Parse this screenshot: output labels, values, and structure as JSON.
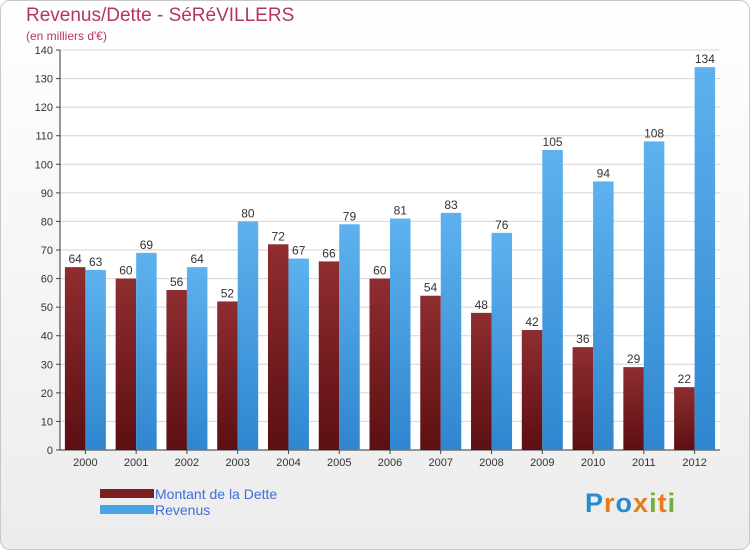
{
  "header": {
    "title": "Revenus/Dette - SéRéVILLERS",
    "subtitle": "(en milliers d'€)"
  },
  "chart_data": {
    "type": "bar",
    "categories": [
      "2000",
      "2001",
      "2002",
      "2003",
      "2004",
      "2005",
      "2006",
      "2007",
      "2008",
      "2009",
      "2010",
      "2011",
      "2012"
    ],
    "series": [
      {
        "name": "Montant de la Dette",
        "color": "#7a1f22",
        "values": [
          64,
          60,
          56,
          52,
          72,
          66,
          60,
          54,
          48,
          42,
          36,
          29,
          22
        ]
      },
      {
        "name": "Revenus",
        "color": "#4aa3e6",
        "values": [
          63,
          69,
          64,
          80,
          67,
          79,
          81,
          83,
          76,
          105,
          94,
          108,
          134
        ]
      }
    ],
    "y_ticks": [
      0,
      10,
      20,
      30,
      40,
      50,
      60,
      70,
      80,
      90,
      100,
      110,
      120,
      130,
      140
    ],
    "ylim": [
      0,
      140
    ],
    "grid": true,
    "legend_position": "bottom-left"
  },
  "legend": {
    "items": [
      {
        "label": "Montant de la Dette",
        "color": "#7a1f22"
      },
      {
        "label": "Revenus",
        "color": "#4aa3e6"
      }
    ]
  },
  "logo": {
    "letters": [
      {
        "char": "P",
        "color": "#2a8ad0"
      },
      {
        "char": "r",
        "color": "#e57d1f"
      },
      {
        "char": "o",
        "color": "#2a8ad0"
      },
      {
        "char": "x",
        "color": "#e57d1f"
      },
      {
        "char": "i",
        "color": "#6fb23a"
      },
      {
        "char": "t",
        "color": "#e57d1f"
      },
      {
        "char": "i",
        "color": "#6fb23a"
      }
    ]
  }
}
